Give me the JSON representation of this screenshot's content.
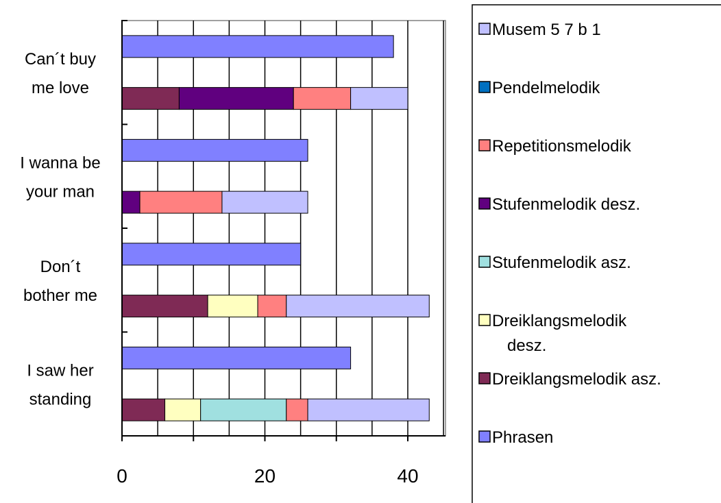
{
  "chart_data": {
    "type": "bar",
    "orientation": "horizontal",
    "stacked": true,
    "categories": [
      {
        "lines": [
          "I saw her",
          "standing"
        ]
      },
      {
        "lines": [
          "Don´t",
          "bother me"
        ]
      },
      {
        "lines": [
          "I wanna be",
          "your man"
        ]
      },
      {
        "lines": [
          "Can´t buy",
          "me love"
        ]
      }
    ],
    "xlim": [
      0,
      45
    ],
    "xticks": [
      0,
      10,
      20,
      30,
      40
    ],
    "xtick_labels": [
      "0",
      "",
      "20",
      "",
      "40"
    ],
    "grid": "vertical",
    "legend_position": "right",
    "stack_series": [
      {
        "name": "Dreiklangsmelodik asz.",
        "color": "#7f2a55",
        "values": [
          6,
          12,
          0,
          8
        ]
      },
      {
        "name": "Dreiklangsmelodik desz.",
        "color": "#ffffc0",
        "values": [
          5,
          7,
          0,
          0
        ]
      },
      {
        "name": "Stufenmelodik asz.",
        "color": "#a0e0e0",
        "values": [
          12,
          0,
          0,
          0
        ]
      },
      {
        "name": "Stufenmelodik desz.",
        "color": "#60007f",
        "values": [
          0,
          0,
          2.5,
          16
        ]
      },
      {
        "name": "Repetitionsmelodik",
        "color": "#ff8080",
        "values": [
          3,
          4,
          11.5,
          8
        ]
      },
      {
        "name": "Pendelmelodik",
        "color": "#0070c0",
        "values": [
          0,
          0,
          0,
          0
        ]
      },
      {
        "name": "Musem 5 7 b 1",
        "color": "#c0c0ff",
        "values": [
          17,
          20,
          12,
          8
        ]
      }
    ],
    "phrasen_series": {
      "name": "Phrasen",
      "color": "#8080ff",
      "values": [
        32,
        25,
        26,
        38
      ]
    },
    "legend": [
      {
        "lines": [
          "Musem 5 7 b 1"
        ],
        "color": "#c0c0ff"
      },
      {
        "lines": [
          "Pendelmelodik"
        ],
        "color": "#0070c0"
      },
      {
        "lines": [
          "Repetitionsmelodik"
        ],
        "color": "#ff8080"
      },
      {
        "lines": [
          "Stufenmelodik desz."
        ],
        "color": "#60007f"
      },
      {
        "lines": [
          "Stufenmelodik asz."
        ],
        "color": "#a0e0e0"
      },
      {
        "lines": [
          "Dreiklangsmelodik",
          "desz."
        ],
        "color": "#ffffc0"
      },
      {
        "lines": [
          "Dreiklangsmelodik asz."
        ],
        "color": "#7f2a55"
      },
      {
        "lines": [
          "Phrasen"
        ],
        "color": "#8080ff"
      }
    ]
  }
}
